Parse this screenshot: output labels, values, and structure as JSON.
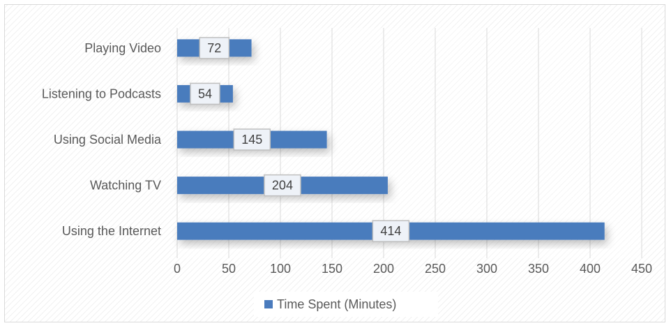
{
  "chart_data": {
    "type": "bar",
    "orientation": "horizontal",
    "title": "",
    "xlabel": "",
    "ylabel": "",
    "categories": [
      "Playing Video",
      "Listening to Podcasts",
      "Using Social Media",
      "Watching TV",
      "Using the Internet"
    ],
    "series": [
      {
        "name": "Time Spent (Minutes)",
        "values": [
          72,
          54,
          145,
          204,
          414
        ],
        "color": "#4a7bbd"
      }
    ],
    "xlim": [
      0,
      450
    ],
    "xticks": [
      0,
      50,
      100,
      150,
      200,
      250,
      300,
      350,
      400,
      450
    ],
    "xtick_labels": [
      "0",
      "50",
      "100",
      "150",
      "200",
      "250",
      "300",
      "350",
      "400",
      "450"
    ],
    "grid": true,
    "legend": "bottom",
    "data_labels": true
  }
}
